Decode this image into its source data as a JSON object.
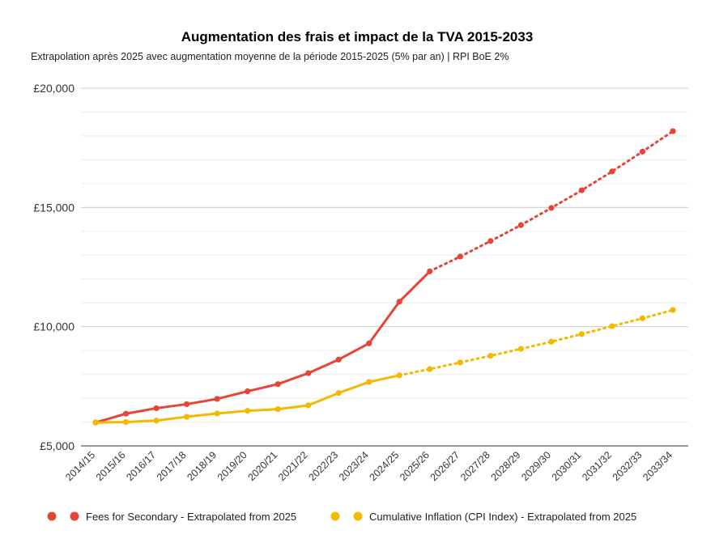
{
  "chart_data": {
    "type": "line",
    "title": "Augmentation des frais et impact de la TVA 2015-2033",
    "subtitle": "Extrapolation après 2025 avec augmentation moyenne de la période 2015-2025 (5% par an) | RPI BoE 2%",
    "xlabel": "",
    "ylabel": "",
    "categories": [
      "2014/15",
      "2015/16",
      "2016/17",
      "2017/18",
      "2018/19",
      "2019/20",
      "2020/21",
      "2021/22",
      "2022/23",
      "2023/24",
      "2024/25",
      "2025/26",
      "2026/27",
      "2027/28",
      "2028/29",
      "2029/30",
      "2030/31",
      "2031/32",
      "2032/33",
      "2033/34"
    ],
    "ylim": [
      5000,
      20000
    ],
    "yticks": [
      5000,
      10000,
      15000,
      20000
    ],
    "ytick_labels": [
      "£5,000",
      "£10,000",
      "£15,000",
      "£20,000"
    ],
    "grid": true,
    "legend_position": "bottom",
    "series": [
      {
        "name": "Fees for Secondary - Extrapolated from 2025",
        "color": "#e74436",
        "values": [
          5980,
          6350,
          6580,
          6750,
          6970,
          7290,
          7590,
          8050,
          8620,
          9300,
          11050,
          12320,
          12940,
          13590,
          14260,
          14980,
          15720,
          16510,
          17340,
          18200
        ],
        "solid_until_index": 11
      },
      {
        "name": "Cumulative Inflation (CPI Index) - Extrapolated from 2025",
        "color": "#f4b800",
        "values": [
          5980,
          6000,
          6060,
          6220,
          6360,
          6470,
          6540,
          6700,
          7220,
          7680,
          7960,
          8220,
          8500,
          8780,
          9070,
          9370,
          9690,
          10020,
          10350,
          10700
        ],
        "solid_until_index": 10
      }
    ]
  }
}
